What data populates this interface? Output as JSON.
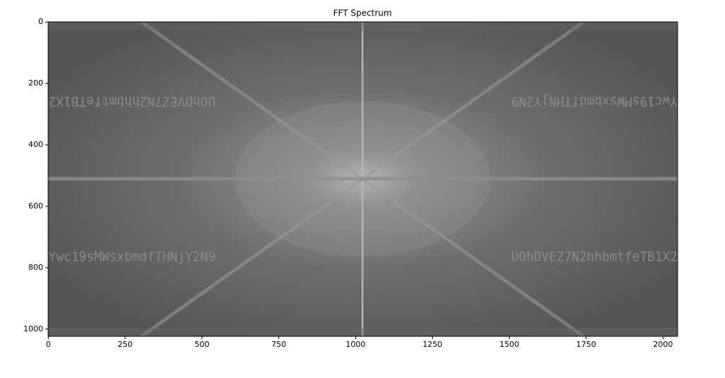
{
  "chart_data": {
    "type": "image",
    "title": "FFT Spectrum",
    "colormap": "gray",
    "image_texts": [
      "UOhDVEZ7N2hhbmtfeTB1X2",
      "Ywc19sMWsxbmdfTHNjY2N9"
    ],
    "xlim": [
      -0.5,
      2047.5
    ],
    "ylim": [
      1023.5,
      -0.5
    ],
    "xticks": [
      0,
      250,
      500,
      750,
      1000,
      1250,
      1500,
      1750,
      2000
    ],
    "yticks": [
      0,
      200,
      400,
      600,
      800,
      1000
    ]
  }
}
